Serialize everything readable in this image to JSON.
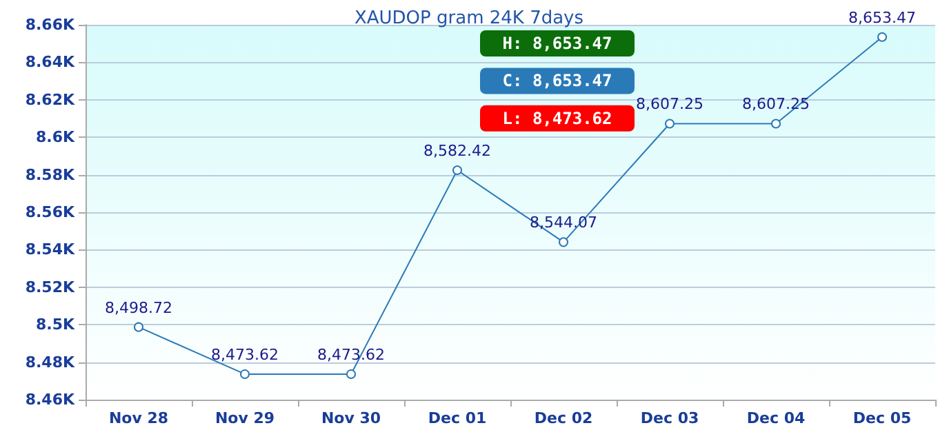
{
  "chart_data": {
    "type": "line",
    "title": "XAUDOP gram 24K 7days",
    "categories": [
      "Nov 28",
      "Nov 29",
      "Nov 30",
      "Dec 01",
      "Dec 02",
      "Dec 03",
      "Dec 04",
      "Dec 05"
    ],
    "series": [
      {
        "color": "#2a7ab8",
        "values": [
          8498.72,
          8473.62,
          8473.62,
          8582.42,
          8544.07,
          8607.25,
          8607.25,
          8653.47
        ],
        "value_labels": [
          "8,498.72",
          "8,473.62",
          "8,473.62",
          "8,582.42",
          "8,544.07",
          "8,607.25",
          "8,607.25",
          "8,653.47"
        ]
      }
    ],
    "ylim": [
      8460,
      8660
    ],
    "yticks": [
      {
        "value": 8460,
        "label": "8.46K"
      },
      {
        "value": 8480,
        "label": "8.48K"
      },
      {
        "value": 8500,
        "label": "8.5K"
      },
      {
        "value": 8520,
        "label": "8.52K"
      },
      {
        "value": 8540,
        "label": "8.54K"
      },
      {
        "value": 8560,
        "label": "8.56K"
      },
      {
        "value": 8580,
        "label": "8.58K"
      },
      {
        "value": 8600,
        "label": "8.6K"
      },
      {
        "value": 8620,
        "label": "8.62K"
      },
      {
        "value": 8640,
        "label": "8.64K"
      },
      {
        "value": 8660,
        "label": "8.66K"
      }
    ],
    "annotations": [
      "H: 8,653.47",
      "C: 8,653.47",
      "L: 8,473.62"
    ],
    "grid": "y",
    "marker": "circle",
    "line_style": "solid"
  }
}
